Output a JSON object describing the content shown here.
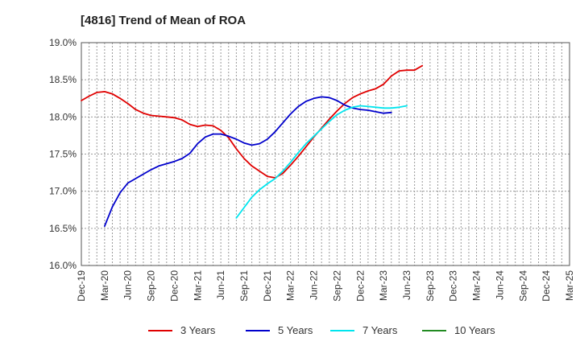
{
  "chart_data": {
    "type": "line",
    "title": "[4816]  Trend of Mean of ROA",
    "xlabel": "",
    "ylabel": "",
    "ylim": [
      16.0,
      19.0
    ],
    "y_ticks": [
      16.0,
      16.5,
      17.0,
      17.5,
      18.0,
      18.5,
      19.0
    ],
    "y_tick_labels": [
      "16.0%",
      "16.5%",
      "17.0%",
      "17.5%",
      "18.0%",
      "18.5%",
      "19.0%"
    ],
    "x_tick_labels": [
      "Dec-19",
      "Mar-20",
      "Jun-20",
      "Sep-20",
      "Dec-20",
      "Mar-21",
      "Jun-21",
      "Sep-21",
      "Dec-21",
      "Mar-22",
      "Jun-22",
      "Sep-22",
      "Dec-22",
      "Mar-23",
      "Jun-23",
      "Sep-23",
      "Dec-23",
      "Mar-24",
      "Jun-24",
      "Sep-24",
      "Dec-24",
      "Mar-25"
    ],
    "grid": true,
    "legend_position": "bottom",
    "series": [
      {
        "name": "3 Years",
        "color": "#e00000",
        "start_index": 0,
        "values": [
          18.22,
          18.28,
          18.33,
          18.34,
          18.31,
          18.25,
          18.18,
          18.1,
          18.05,
          18.02,
          18.01,
          18.0,
          17.99,
          17.96,
          17.9,
          17.87,
          17.89,
          17.88,
          17.82,
          17.72,
          17.57,
          17.44,
          17.34,
          17.27,
          17.2,
          17.18,
          17.24,
          17.35,
          17.47,
          17.6,
          17.73,
          17.85,
          17.97,
          18.08,
          18.18,
          18.26,
          18.31,
          18.35,
          18.38,
          18.44,
          18.55,
          18.62,
          18.63,
          18.63,
          18.69
        ]
      },
      {
        "name": "5 Years",
        "color": "#0000cc",
        "start_index": 3,
        "values": [
          16.53,
          16.79,
          16.98,
          17.11,
          17.17,
          17.23,
          17.29,
          17.34,
          17.37,
          17.4,
          17.44,
          17.51,
          17.64,
          17.73,
          17.77,
          17.77,
          17.74,
          17.7,
          17.65,
          17.62,
          17.64,
          17.7,
          17.8,
          17.92,
          18.04,
          18.14,
          18.21,
          18.25,
          18.27,
          18.26,
          18.22,
          18.16,
          18.12,
          18.1,
          18.09,
          18.07,
          18.05,
          18.06
        ]
      },
      {
        "name": "7 Years",
        "color": "#00e5ee",
        "start_index": 20,
        "values": [
          16.64,
          16.78,
          16.92,
          17.02,
          17.1,
          17.17,
          17.27,
          17.39,
          17.52,
          17.64,
          17.74,
          17.84,
          17.94,
          18.03,
          18.09,
          18.13,
          18.15,
          18.14,
          18.13,
          18.12,
          18.12,
          18.13,
          18.15
        ]
      },
      {
        "name": "10 Years",
        "color": "#228b22",
        "start_index": 0,
        "values": []
      }
    ]
  }
}
